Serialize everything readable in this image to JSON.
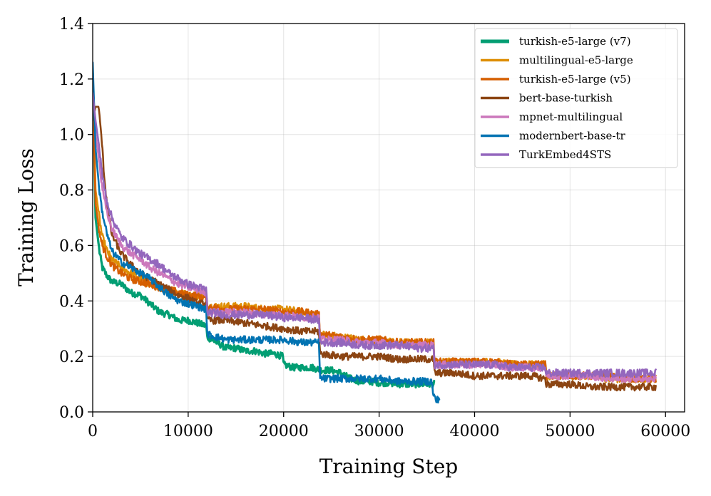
{
  "chart_data": {
    "type": "line",
    "title": "",
    "xlabel": "Training Step",
    "ylabel": "Training Loss",
    "xlim": [
      0,
      62000
    ],
    "ylim": [
      0,
      1.4
    ],
    "xticks": [
      0,
      10000,
      20000,
      30000,
      40000,
      50000,
      60000
    ],
    "xtick_labels": [
      "0",
      "10000",
      "20000",
      "30000",
      "40000",
      "50000",
      "60000"
    ],
    "yticks": [
      0.0,
      0.2,
      0.4,
      0.6,
      0.8,
      1.0,
      1.2,
      1.4
    ],
    "ytick_labels": [
      "0.0",
      "0.2",
      "0.4",
      "0.6",
      "0.8",
      "1.0",
      "1.2",
      "1.4"
    ],
    "grid": true,
    "legend_position": "top-right",
    "series": [
      {
        "name": "turkish-e5-large (v7)",
        "color": "#029e73",
        "noise": 0.012,
        "x": [
          0,
          300,
          700,
          1000,
          1500,
          2000,
          3000,
          4000,
          5000,
          6000,
          7000,
          8000,
          9000,
          10000,
          11000,
          11900,
          12000,
          13000,
          14000,
          15000,
          16000,
          17000,
          18000,
          19000,
          19900,
          20000,
          21000,
          22000,
          23000,
          24000,
          25000,
          26000,
          27000,
          28000,
          29000,
          30000,
          31000,
          32000,
          33000,
          34000,
          35000,
          35800
        ],
        "y": [
          1.22,
          0.7,
          0.58,
          0.52,
          0.49,
          0.47,
          0.46,
          0.43,
          0.42,
          0.39,
          0.36,
          0.35,
          0.33,
          0.33,
          0.32,
          0.31,
          0.27,
          0.25,
          0.23,
          0.23,
          0.22,
          0.22,
          0.21,
          0.21,
          0.2,
          0.17,
          0.16,
          0.16,
          0.16,
          0.15,
          0.15,
          0.14,
          0.12,
          0.11,
          0.11,
          0.105,
          0.105,
          0.1,
          0.1,
          0.1,
          0.1,
          0.1
        ]
      },
      {
        "name": "multilingual-e5-large",
        "color": "#de8f05",
        "noise": 0.014,
        "x": [
          0,
          300,
          700,
          1000,
          1500,
          2000,
          3000,
          4000,
          5000,
          6000,
          7000,
          8000,
          9000,
          10000,
          11000,
          11900,
          12000,
          14000,
          16000,
          18000,
          20000,
          22000,
          23700,
          23800,
          26000,
          28000,
          30000,
          32000,
          34000,
          35700,
          35800,
          38000,
          40000,
          42000,
          44000,
          46000,
          47400,
          47500,
          50000,
          52000,
          54000,
          56000,
          58000,
          59000
        ],
        "y": [
          1.2,
          0.8,
          0.7,
          0.63,
          0.58,
          0.55,
          0.52,
          0.5,
          0.48,
          0.46,
          0.45,
          0.44,
          0.43,
          0.42,
          0.42,
          0.41,
          0.38,
          0.38,
          0.38,
          0.37,
          0.37,
          0.36,
          0.35,
          0.28,
          0.27,
          0.26,
          0.26,
          0.25,
          0.25,
          0.25,
          0.18,
          0.18,
          0.18,
          0.18,
          0.17,
          0.17,
          0.17,
          0.13,
          0.13,
          0.13,
          0.12,
          0.12,
          0.12,
          0.12
        ]
      },
      {
        "name": "turkish-e5-large (v5)",
        "color": "#d55e00",
        "noise": 0.014,
        "x": [
          0,
          300,
          700,
          1000,
          1500,
          2000,
          3000,
          4000,
          5000,
          6000,
          7000,
          8000,
          9000,
          10000,
          11000,
          11900,
          12000,
          14000,
          16000,
          18000,
          20000,
          22000,
          23700,
          23800,
          26000,
          28000,
          30000,
          32000,
          34000,
          35700,
          35800,
          38000,
          40000,
          42000,
          44000,
          46000,
          47400,
          47500,
          50000,
          52000,
          54000,
          56000,
          58000,
          59000
        ],
        "y": [
          1.15,
          0.75,
          0.65,
          0.6,
          0.56,
          0.53,
          0.5,
          0.48,
          0.47,
          0.46,
          0.45,
          0.44,
          0.43,
          0.42,
          0.42,
          0.41,
          0.38,
          0.37,
          0.37,
          0.37,
          0.36,
          0.36,
          0.35,
          0.28,
          0.27,
          0.26,
          0.26,
          0.25,
          0.25,
          0.25,
          0.18,
          0.18,
          0.18,
          0.18,
          0.17,
          0.17,
          0.17,
          0.13,
          0.13,
          0.13,
          0.13,
          0.12,
          0.12,
          0.12
        ]
      },
      {
        "name": "bert-base-turkish",
        "color": "#8c4513",
        "noise": 0.013,
        "x": [
          0,
          300,
          600,
          900,
          1200,
          1500,
          2000,
          3000,
          4000,
          5000,
          6000,
          7000,
          8000,
          9000,
          10000,
          11000,
          11900,
          12000,
          14000,
          16000,
          18000,
          20000,
          22000,
          23700,
          23800,
          26000,
          28000,
          30000,
          32000,
          34000,
          35700,
          35800,
          38000,
          40000,
          42000,
          44000,
          46000,
          47400,
          47500,
          50000,
          52000,
          54000,
          56000,
          58000,
          59000
        ],
        "y": [
          1.05,
          1.1,
          1.1,
          1.0,
          0.85,
          0.75,
          0.64,
          0.57,
          0.53,
          0.5,
          0.48,
          0.46,
          0.44,
          0.42,
          0.41,
          0.39,
          0.39,
          0.33,
          0.33,
          0.32,
          0.31,
          0.3,
          0.29,
          0.29,
          0.21,
          0.2,
          0.2,
          0.2,
          0.19,
          0.19,
          0.19,
          0.14,
          0.14,
          0.13,
          0.13,
          0.13,
          0.13,
          0.12,
          0.1,
          0.1,
          0.09,
          0.09,
          0.09,
          0.09,
          0.09
        ]
      },
      {
        "name": "mpnet-multilingual",
        "color": "#cc78bc",
        "noise": 0.013,
        "x": [
          0,
          300,
          700,
          1000,
          1500,
          2000,
          3000,
          4000,
          5000,
          6000,
          7000,
          8000,
          9000,
          10000,
          11000,
          11900,
          12000,
          14000,
          16000,
          18000,
          20000,
          22000,
          23700,
          23800,
          26000,
          28000,
          30000,
          32000,
          34000,
          35700,
          35800,
          38000,
          40000,
          42000,
          44000,
          46000,
          47400,
          47500,
          50000,
          52000,
          54000,
          56000,
          58000,
          59000
        ],
        "y": [
          1.2,
          1.0,
          0.9,
          0.8,
          0.72,
          0.66,
          0.6,
          0.57,
          0.55,
          0.52,
          0.5,
          0.48,
          0.46,
          0.45,
          0.44,
          0.43,
          0.36,
          0.36,
          0.36,
          0.35,
          0.35,
          0.34,
          0.34,
          0.26,
          0.26,
          0.25,
          0.25,
          0.24,
          0.24,
          0.24,
          0.17,
          0.17,
          0.17,
          0.17,
          0.16,
          0.16,
          0.16,
          0.13,
          0.13,
          0.13,
          0.12,
          0.12,
          0.12,
          0.12
        ]
      },
      {
        "name": "modernbert-base-tr",
        "color": "#0173b2",
        "noise": 0.013,
        "x": [
          0,
          300,
          700,
          1000,
          1500,
          2000,
          3000,
          4000,
          5000,
          6000,
          7000,
          8000,
          9000,
          10000,
          11000,
          11900,
          12000,
          14000,
          16000,
          18000,
          20000,
          22000,
          23700,
          23800,
          25000,
          26000,
          28000,
          30000,
          32000,
          34000,
          35500,
          35700,
          36000,
          36300
        ],
        "y": [
          1.26,
          0.95,
          0.8,
          0.72,
          0.64,
          0.58,
          0.54,
          0.52,
          0.5,
          0.48,
          0.45,
          0.42,
          0.4,
          0.39,
          0.38,
          0.37,
          0.28,
          0.26,
          0.26,
          0.26,
          0.26,
          0.25,
          0.25,
          0.12,
          0.12,
          0.12,
          0.12,
          0.12,
          0.11,
          0.11,
          0.11,
          0.06,
          0.04,
          0.05
        ]
      },
      {
        "name": "TurkEmbed4STS",
        "color": "#9467bd",
        "noise": 0.014,
        "x": [
          0,
          300,
          700,
          1000,
          1500,
          2000,
          3000,
          4000,
          5000,
          6000,
          7000,
          8000,
          9000,
          10000,
          11000,
          11900,
          12000,
          14000,
          16000,
          18000,
          20000,
          22000,
          23700,
          23800,
          26000,
          28000,
          30000,
          32000,
          34000,
          35700,
          35800,
          38000,
          40000,
          42000,
          44000,
          46000,
          47400,
          47500,
          50000,
          52000,
          54000,
          56000,
          58000,
          59000
        ],
        "y": [
          1.15,
          1.05,
          0.95,
          0.85,
          0.76,
          0.7,
          0.63,
          0.6,
          0.57,
          0.55,
          0.53,
          0.5,
          0.48,
          0.46,
          0.45,
          0.44,
          0.36,
          0.35,
          0.35,
          0.35,
          0.34,
          0.34,
          0.33,
          0.25,
          0.25,
          0.24,
          0.24,
          0.24,
          0.23,
          0.23,
          0.17,
          0.17,
          0.17,
          0.17,
          0.16,
          0.16,
          0.16,
          0.14,
          0.14,
          0.14,
          0.14,
          0.14,
          0.14,
          0.14
        ]
      }
    ]
  }
}
